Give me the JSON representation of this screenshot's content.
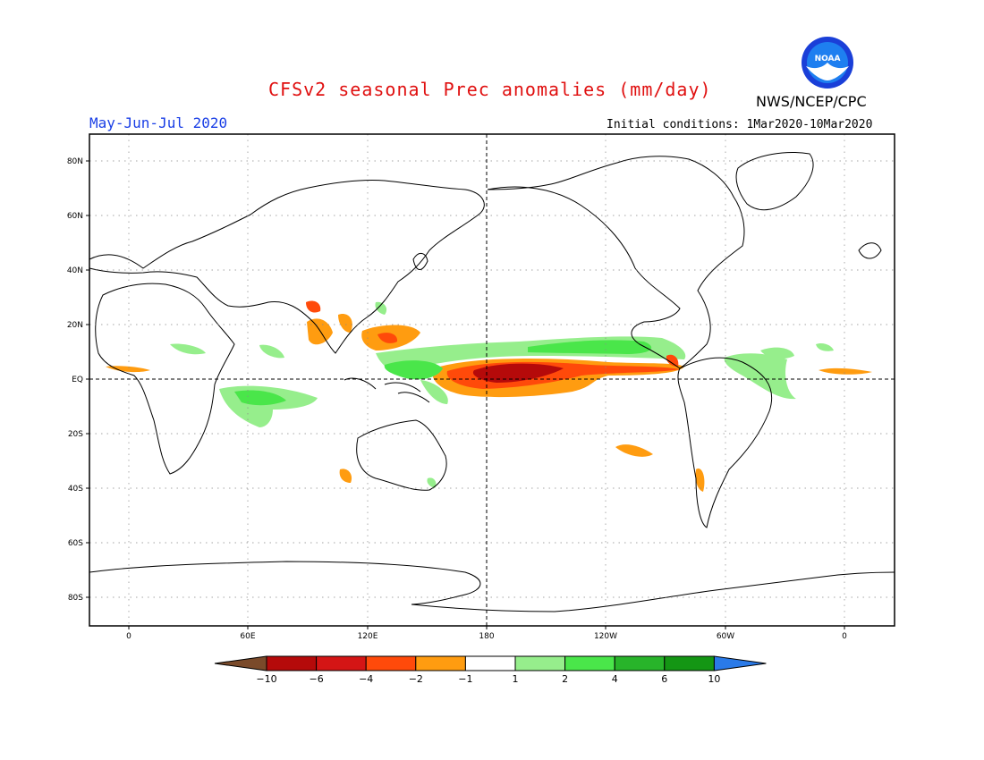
{
  "header": {
    "title": "CFSv2 seasonal Prec anomalies (mm/day)",
    "org": "NWS/NCEP/CPC",
    "season": "May-Jun-Jul 2020",
    "initial_conditions": "Initial conditions: 1Mar2020-10Mar2020"
  },
  "logo": {
    "text": "NOAA",
    "icon": "noaa-logo-icon"
  },
  "map": {
    "lat_labels": [
      "80N",
      "60N",
      "40N",
      "20N",
      "EQ",
      "20S",
      "40S",
      "60S",
      "80S"
    ],
    "lon_labels": [
      "0",
      "60E",
      "120E",
      "180",
      "120W",
      "60W",
      "0"
    ]
  },
  "colorbar": {
    "labels": [
      "-10",
      "-6",
      "-4",
      "-2",
      "-1",
      "1",
      "2",
      "4",
      "6",
      "10"
    ],
    "colors": [
      "#7a4a2a",
      "#b50a0a",
      "#d41515",
      "#ff4a0a",
      "#ff9c10",
      "#ffffff",
      "#96ee8c",
      "#4ae64a",
      "#28b42a",
      "#149614",
      "#2a7ae8"
    ]
  },
  "colors": {
    "title": "#e01010",
    "season": "#1a3fe6",
    "heavy_dry": "#b50a0a",
    "dry": "#ff4a0a",
    "mild_dry": "#ff9c10",
    "mild_wet": "#96ee8c",
    "wet": "#4ae64a",
    "heavy_wet": "#28b42a"
  }
}
